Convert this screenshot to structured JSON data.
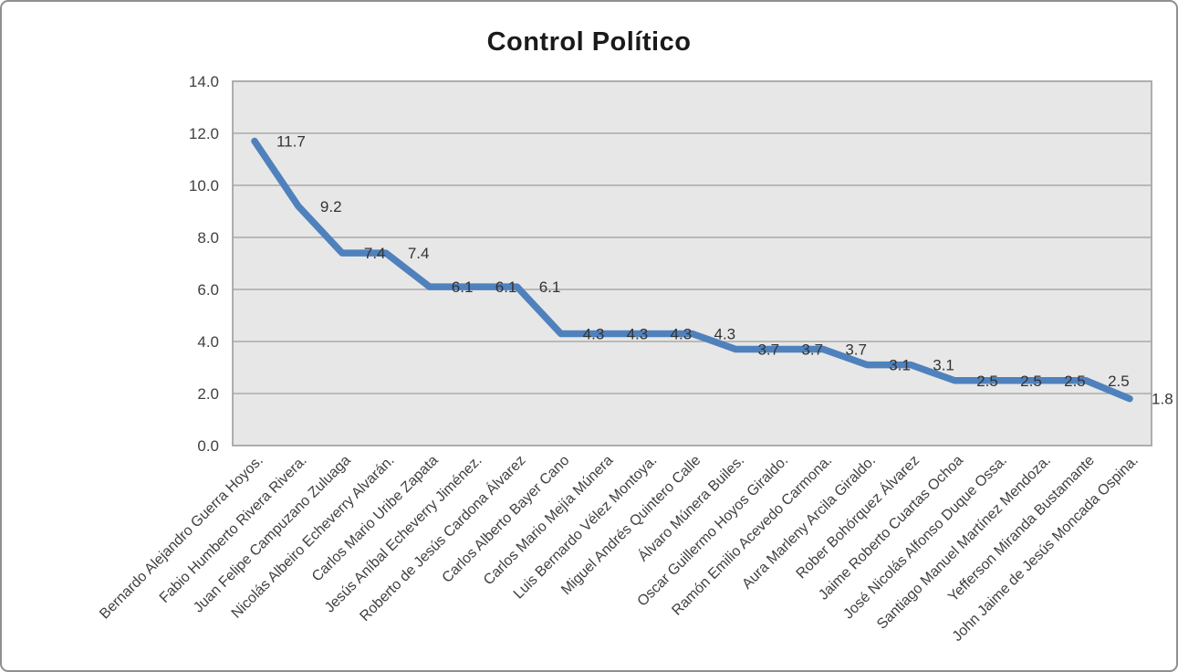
{
  "window": {
    "background": "#ffffff",
    "border_color": "#8f8f8f"
  },
  "chart_data": {
    "type": "line",
    "title": "Control Político",
    "xlabel": "",
    "ylabel": "",
    "legend": "none",
    "grid": true,
    "ylim": [
      0,
      14
    ],
    "ytick_step": 2,
    "ytick_labels": [
      "0.0",
      "2.0",
      "4.0",
      "6.0",
      "8.0",
      "10.0",
      "12.0",
      "14.0"
    ],
    "categories": [
      "Bernardo Alejandro Guerra Hoyos.",
      "Fabio Humberto Rivera Rivera.",
      "Juan Felipe Campuzano Zuluaga",
      "Nicolás Albeiro Echeverry Alvarán.",
      "Carlos Mario Uribe Zapata",
      "Jesús Aníbal Echeverry Jiménez.",
      "Roberto de Jesús Cardona Álvarez",
      "Carlos Alberto Bayer Cano",
      "Carlos Mario Mejía Múnera",
      "Luis Bernardo Vélez Montoya.",
      "Miguel Andrés Quintero Calle",
      "Álvaro Múnera Builes.",
      "Oscar Guillermo Hoyos Giraldo.",
      "Ramón Emilio Acevedo Carmona.",
      "Aura Marleny Arcila Giraldo.",
      "Rober Bohórquez Álvarez",
      "Jaime Roberto Cuartas Ochoa",
      "José Nicolás Alfonso Duque Ossa.",
      "Santiago Manuel Martínez Mendoza.",
      "Yefferson Miranda Bustamante",
      "John Jaime de Jesús Moncada Ospina."
    ],
    "values": [
      11.7,
      9.2,
      7.4,
      7.4,
      6.1,
      6.1,
      6.1,
      4.3,
      4.3,
      4.3,
      4.3,
      3.7,
      3.7,
      3.7,
      3.1,
      3.1,
      2.5,
      2.5,
      2.5,
      2.5,
      1.8
    ],
    "data_labels": [
      "11.7",
      "9.2",
      "7.4",
      "7.4",
      "6.1",
      "6.1",
      "6.1",
      "4.3",
      "4.3",
      "4.3",
      "4.3",
      "3.7",
      "3.7",
      "3.7",
      "3.1",
      "3.1",
      "2.5",
      "2.5",
      "2.5",
      "2.5",
      "1.8"
    ],
    "styles": {
      "line_color": "#4f81bd",
      "plot_bg": "#e7e7e7",
      "gridline_color": "#aaaaaa",
      "plot_border_color": "#a6a6a6",
      "axis_label_color": "#404040",
      "data_label_color": "#333333",
      "title_color": "#1a1a1a"
    }
  }
}
